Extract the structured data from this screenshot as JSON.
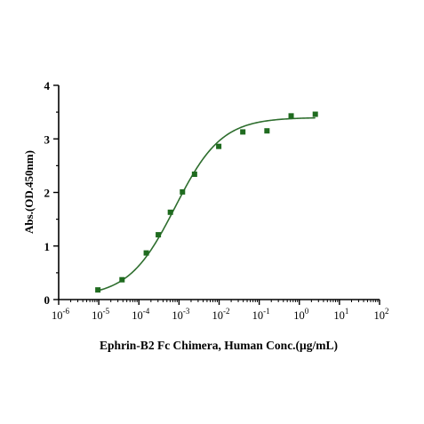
{
  "chart_data": {
    "type": "scatter",
    "title": "",
    "xlabel": "Ephrin-B2 Fc Chimera, Human Conc.(μg/mL)",
    "ylabel": "Abs.(OD.450nm)",
    "x_scale": "log",
    "xlim": [
      1e-06,
      100
    ],
    "ylim": [
      0,
      4
    ],
    "x_ticks": [
      {
        "base": "10",
        "exp": "-6",
        "value": 1e-06
      },
      {
        "base": "10",
        "exp": "-5",
        "value": 1e-05
      },
      {
        "base": "10",
        "exp": "-4",
        "value": 0.0001
      },
      {
        "base": "10",
        "exp": "-3",
        "value": 0.001
      },
      {
        "base": "10",
        "exp": "-2",
        "value": 0.01
      },
      {
        "base": "10",
        "exp": "-1",
        "value": 0.1
      },
      {
        "base": "10",
        "exp": "0",
        "value": 1
      },
      {
        "base": "10",
        "exp": "1",
        "value": 10
      },
      {
        "base": "10",
        "exp": "2",
        "value": 100
      }
    ],
    "y_ticks": [
      "0",
      "1",
      "2",
      "3",
      "4"
    ],
    "grid": false,
    "legend": "none",
    "marker_color": "#1f6b1f",
    "fit_color": "#2e6e2e",
    "series": [
      {
        "x": [
          9.5e-06,
          3.8e-05,
          0.000153,
          0.000305,
          0.00061,
          0.00122,
          0.00244,
          0.0098,
          0.039,
          0.156,
          0.625,
          2.5
        ],
        "y": [
          0.18,
          0.37,
          0.87,
          1.21,
          1.63,
          2.01,
          2.34,
          2.86,
          3.13,
          3.15,
          3.43,
          3.46
        ]
      }
    ],
    "fit_curve": {
      "model": "4PL",
      "bottom": 0.05,
      "top": 3.4,
      "ec50": 0.0008,
      "hill": 0.75,
      "x_range": [
        9.5e-06,
        2.5
      ]
    }
  }
}
